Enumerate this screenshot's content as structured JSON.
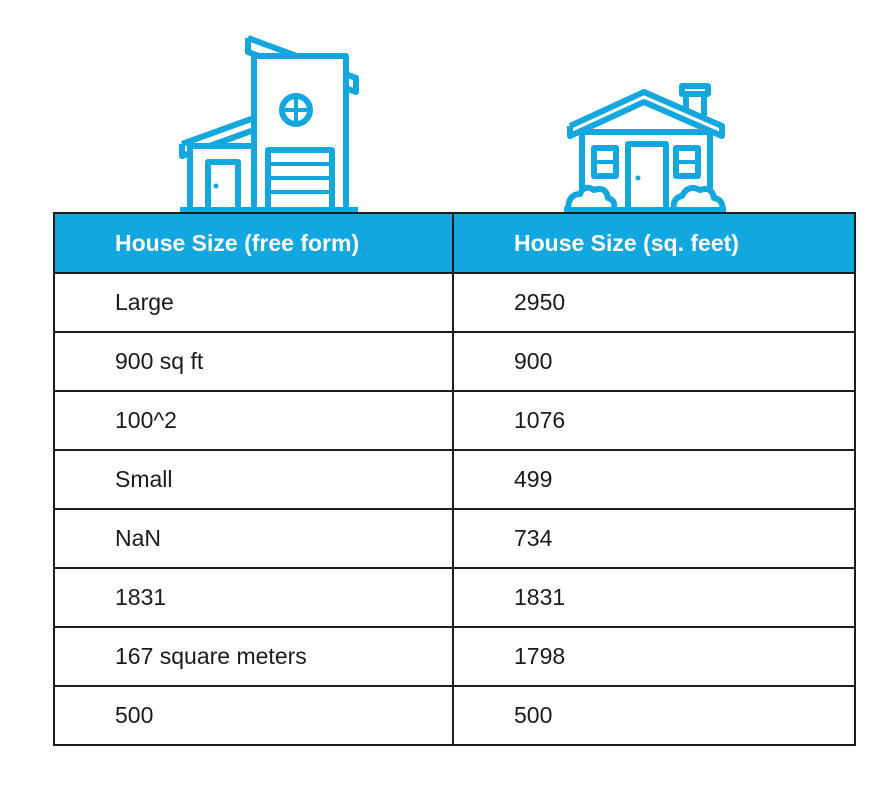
{
  "table": {
    "headers": [
      "House Size (free form)",
      "House Size (sq. feet)"
    ],
    "rows": [
      [
        "Large",
        "2950"
      ],
      [
        "900 sq ft",
        "900"
      ],
      [
        "100^2",
        "1076"
      ],
      [
        "Small",
        "499"
      ],
      [
        "NaN",
        "734"
      ],
      [
        "1831",
        "1831"
      ],
      [
        "167 square meters",
        "1798"
      ],
      [
        "500",
        "500"
      ]
    ]
  },
  "icons": [
    "modern-house-icon",
    "cottage-house-icon"
  ],
  "colors": {
    "accent": "#12a7df",
    "border": "#1d1d1d",
    "text": "#1b1b1b"
  }
}
